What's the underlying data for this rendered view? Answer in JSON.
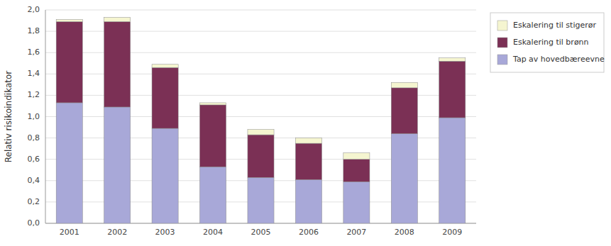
{
  "chart_data": {
    "type": "bar",
    "stacked": true,
    "categories": [
      "2001",
      "2002",
      "2003",
      "2004",
      "2005",
      "2006",
      "2007",
      "2008",
      "2009"
    ],
    "series": [
      {
        "name": "Tap av hovedbæreevne",
        "color": "#a8a8d8",
        "values": [
          1.13,
          1.09,
          0.89,
          0.53,
          0.43,
          0.41,
          0.39,
          0.84,
          0.99
        ]
      },
      {
        "name": "Eskalering til brønn",
        "color": "#7b3055",
        "values": [
          0.76,
          0.8,
          0.57,
          0.58,
          0.4,
          0.34,
          0.21,
          0.43,
          0.53
        ]
      },
      {
        "name": "Eskalering til stigerør",
        "color": "#f5f5d0",
        "values": [
          0.02,
          0.04,
          0.03,
          0.02,
          0.05,
          0.05,
          0.06,
          0.05,
          0.03
        ]
      }
    ],
    "ylabel": "Relativ risikoindikator",
    "ylim": [
      0,
      2.0
    ],
    "yticks": [
      {
        "value": 0.0,
        "label": "0,0"
      },
      {
        "value": 0.2,
        "label": "0,2"
      },
      {
        "value": 0.4,
        "label": "0,4"
      },
      {
        "value": 0.6,
        "label": "0,6"
      },
      {
        "value": 0.8,
        "label": "0,8"
      },
      {
        "value": 1.0,
        "label": "1,0"
      },
      {
        "value": 1.2,
        "label": "1,2"
      },
      {
        "value": 1.4,
        "label": "1,4"
      },
      {
        "value": 1.6,
        "label": "1,6"
      },
      {
        "value": 1.8,
        "label": "1,8"
      },
      {
        "value": 2.0,
        "label": "2,0"
      }
    ],
    "grid": true,
    "legend": "right"
  }
}
